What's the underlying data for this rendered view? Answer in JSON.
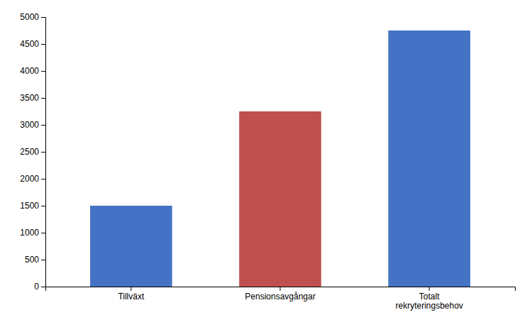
{
  "chart_data": {
    "type": "bar",
    "categories": [
      "Tillväxt",
      "Pensionsavgångar",
      "Totalt\nrekryteringsbehov"
    ],
    "values": [
      1500,
      3250,
      4750
    ],
    "colors": [
      "#4472C4",
      "#C0504D",
      "#4472C4"
    ],
    "ylim": [
      0,
      5000
    ],
    "yticks": [
      0,
      500,
      1000,
      1500,
      2000,
      2500,
      3000,
      3500,
      4000,
      4500,
      5000
    ],
    "grid": false
  }
}
